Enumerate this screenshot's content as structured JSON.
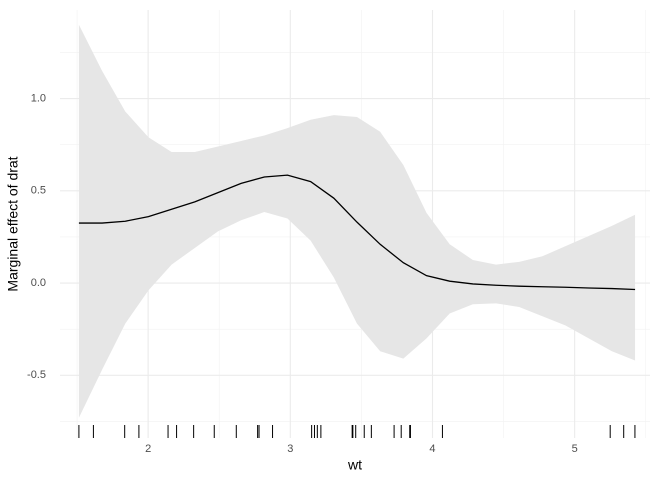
{
  "chart_data": {
    "type": "line",
    "x_label": "wt",
    "y_label": "Marginal effect of drat",
    "x": [
      1.513,
      1.676,
      1.839,
      2.002,
      2.165,
      2.328,
      2.491,
      2.654,
      2.817,
      2.98,
      3.143,
      3.306,
      3.469,
      3.632,
      3.795,
      3.958,
      4.121,
      4.284,
      4.447,
      4.61,
      4.773,
      4.936,
      5.099,
      5.262,
      5.425
    ],
    "series": [
      {
        "color": "#000000",
        "ribbon_color": "#e6e6e6",
        "values": [
          0.325,
          0.325,
          0.335,
          0.36,
          0.4,
          0.44,
          0.49,
          0.54,
          0.575,
          0.585,
          0.55,
          0.46,
          0.33,
          0.21,
          0.11,
          0.04,
          0.01,
          -0.005,
          -0.012,
          -0.017,
          -0.02,
          -0.023,
          -0.027,
          -0.03,
          -0.035
        ],
        "upper": [
          1.4,
          1.15,
          0.93,
          0.79,
          0.71,
          0.71,
          0.74,
          0.77,
          0.8,
          0.84,
          0.885,
          0.91,
          0.9,
          0.82,
          0.64,
          0.38,
          0.21,
          0.125,
          0.1,
          0.115,
          0.145,
          0.2,
          0.255,
          0.31,
          0.37
        ],
        "lower": [
          -0.73,
          -0.47,
          -0.22,
          -0.04,
          0.1,
          0.19,
          0.28,
          0.34,
          0.385,
          0.35,
          0.23,
          0.03,
          -0.22,
          -0.37,
          -0.41,
          -0.3,
          -0.165,
          -0.115,
          -0.11,
          -0.13,
          -0.18,
          -0.23,
          -0.3,
          -0.37,
          -0.42
        ]
      }
    ],
    "rug": [
      1.513,
      1.615,
      1.835,
      1.935,
      2.14,
      2.2,
      2.32,
      2.465,
      2.62,
      2.77,
      2.78,
      2.875,
      3.15,
      3.17,
      3.19,
      3.215,
      3.435,
      3.44,
      3.46,
      3.52,
      3.57,
      3.73,
      3.78,
      3.84,
      3.845,
      4.07,
      5.25,
      5.345,
      5.424
    ],
    "xlim": [
      1.38,
      5.53
    ],
    "ylim": [
      -0.84,
      1.48
    ],
    "xticks": [
      2,
      3,
      4,
      5
    ],
    "yticks": [
      {
        "value": -0.5,
        "label": "-0.5"
      },
      {
        "value": 0,
        "label": "0.0"
      },
      {
        "value": 0.5,
        "label": "0.5"
      },
      {
        "value": 1,
        "label": "1.0"
      }
    ],
    "grid": true,
    "minor_grid": true
  }
}
